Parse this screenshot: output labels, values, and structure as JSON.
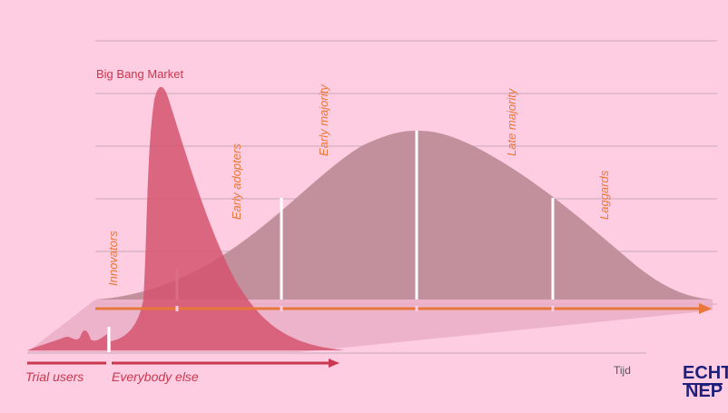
{
  "title": "Big Bang Market",
  "segments": [
    "Innovators",
    "Early adopters",
    "Early majority",
    "Late majority",
    "Laggards"
  ],
  "bottom_labels": {
    "trial": "Trial users",
    "everybody": "Everybody else"
  },
  "axis_label": "Tijd",
  "logo": {
    "line1": "ECHT",
    "line2": "NEP"
  },
  "colors": {
    "background": "#ffcde2",
    "bell": "#c2909c",
    "spike": "#d5546e",
    "orange": "#e8783a",
    "red": "#c8384e",
    "logo": "#1d1f7a"
  }
}
